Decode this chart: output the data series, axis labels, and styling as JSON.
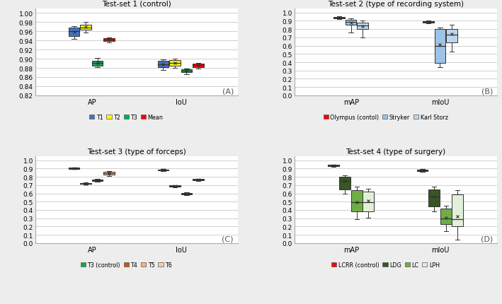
{
  "panel_A": {
    "title": "Test-set 1 (control)",
    "xlabel_groups": [
      "AP",
      "IoU"
    ],
    "ylim": [
      0.82,
      1.01
    ],
    "yticks": [
      0.82,
      0.84,
      0.86,
      0.88,
      0.9,
      0.92,
      0.94,
      0.96,
      0.98,
      1.0
    ],
    "legend_labels": [
      "T1",
      "T2",
      "T3",
      "Mean"
    ],
    "legend_colors": [
      "#4472C4",
      "#FFFF00",
      "#00B050",
      "#FF0000"
    ],
    "label": "(A)",
    "series_keys": [
      "T1",
      "T2",
      "T3",
      "Mean"
    ],
    "groups": {
      "AP": {
        "T1": {
          "q1": 0.95,
          "median": 0.96,
          "q3": 0.968,
          "whislo": 0.943,
          "whishi": 0.972,
          "mean": 0.959
        },
        "T2": {
          "q1": 0.963,
          "median": 0.968,
          "q3": 0.975,
          "whislo": 0.958,
          "whishi": 0.98,
          "mean": 0.969
        },
        "T3": {
          "q1": 0.885,
          "median": 0.891,
          "q3": 0.896,
          "whislo": 0.881,
          "whishi": 0.901,
          "mean": 0.891
        },
        "Mean": {
          "q1": 0.939,
          "median": 0.942,
          "q3": 0.945,
          "whislo": 0.935,
          "whishi": 0.947,
          "mean": 0.942
        }
      },
      "IoU": {
        "T1": {
          "q1": 0.882,
          "median": 0.888,
          "q3": 0.895,
          "whislo": 0.875,
          "whishi": 0.898,
          "mean": 0.888
        },
        "T2": {
          "q1": 0.884,
          "median": 0.891,
          "q3": 0.897,
          "whislo": 0.88,
          "whishi": 0.9,
          "mean": 0.891
        },
        "T3": {
          "q1": 0.87,
          "median": 0.874,
          "q3": 0.877,
          "whislo": 0.866,
          "whishi": 0.879,
          "mean": 0.874
        },
        "Mean": {
          "q1": 0.882,
          "median": 0.886,
          "q3": 0.889,
          "whislo": 0.879,
          "whishi": 0.891,
          "mean": 0.886
        }
      }
    }
  },
  "panel_B": {
    "title": "Test-set 2 (type of recording system)",
    "xlabel_groups": [
      "mAP",
      "mIoU"
    ],
    "ylim": [
      0,
      1.05
    ],
    "yticks": [
      0,
      0.1,
      0.2,
      0.3,
      0.4,
      0.5,
      0.6,
      0.7,
      0.8,
      0.9,
      1.0
    ],
    "legend_labels": [
      "Olympus (contol)",
      "Stryker",
      "Karl Storz"
    ],
    "legend_colors": [
      "#FF0000",
      "#9DC3E6",
      "#BDD7EE"
    ],
    "label": "(B)",
    "series_keys": [
      "Olympus",
      "Stryker",
      "KarlStorz"
    ],
    "groups": {
      "mAP": {
        "Olympus": {
          "q1": 0.93,
          "median": 0.94,
          "q3": 0.95,
          "whislo": 0.92,
          "whishi": 0.957,
          "mean": 0.94
        },
        "Stryker": {
          "q1": 0.85,
          "median": 0.885,
          "q3": 0.91,
          "whislo": 0.76,
          "whishi": 0.93,
          "mean": 0.88
        },
        "KarlStorz": {
          "q1": 0.8,
          "median": 0.845,
          "q3": 0.875,
          "whislo": 0.7,
          "whishi": 0.9,
          "mean": 0.84
        }
      },
      "mIoU": {
        "Olympus": {
          "q1": 0.878,
          "median": 0.888,
          "q3": 0.896,
          "whislo": 0.872,
          "whishi": 0.9,
          "mean": 0.888
        },
        "Stryker": {
          "q1": 0.39,
          "median": 0.6,
          "q3": 0.8,
          "whislo": 0.34,
          "whishi": 0.82,
          "mean": 0.61
        },
        "KarlStorz": {
          "q1": 0.64,
          "median": 0.73,
          "q3": 0.8,
          "whislo": 0.53,
          "whishi": 0.85,
          "mean": 0.745
        }
      }
    }
  },
  "panel_C": {
    "title": "Test-set 3 (type of forceps)",
    "xlabel_groups": [
      "AP",
      "IoU"
    ],
    "ylim": [
      0,
      1.05
    ],
    "yticks": [
      0,
      0.1,
      0.2,
      0.3,
      0.4,
      0.5,
      0.6,
      0.7,
      0.8,
      0.9,
      1.0
    ],
    "legend_labels": [
      "T3 (control)",
      "T4",
      "T5",
      "T6"
    ],
    "legend_colors": [
      "#00B050",
      "#C55A11",
      "#F4B183",
      "#F8CBAD"
    ],
    "label": "(C)",
    "series_keys": [
      "T3",
      "T4",
      "T5",
      "T6"
    ],
    "groups": {
      "AP": {
        "T3": {
          "q1": 0.898,
          "median": 0.904,
          "q3": 0.909,
          "whislo": 0.893,
          "whishi": 0.912,
          "mean": 0.904
        },
        "T4": {
          "q1": 0.713,
          "median": 0.72,
          "q3": 0.728,
          "whislo": 0.704,
          "whishi": 0.734,
          "mean": 0.72
        },
        "T5": {
          "q1": 0.752,
          "median": 0.76,
          "q3": 0.768,
          "whislo": 0.745,
          "whishi": 0.773,
          "mean": 0.76
        },
        "T6": {
          "q1": 0.825,
          "median": 0.848,
          "q3": 0.862,
          "whislo": 0.812,
          "whishi": 0.872,
          "mean": 0.848
        }
      },
      "IoU": {
        "T3": {
          "q1": 0.875,
          "median": 0.883,
          "q3": 0.889,
          "whislo": 0.869,
          "whishi": 0.892,
          "mean": 0.883
        },
        "T4": {
          "q1": 0.68,
          "median": 0.688,
          "q3": 0.697,
          "whislo": 0.672,
          "whishi": 0.702,
          "mean": 0.688
        },
        "T5": {
          "q1": 0.587,
          "median": 0.598,
          "q3": 0.608,
          "whislo": 0.58,
          "whishi": 0.612,
          "mean": 0.598
        },
        "T6": {
          "q1": 0.758,
          "median": 0.766,
          "q3": 0.774,
          "whislo": 0.752,
          "whishi": 0.778,
          "mean": 0.766
        }
      }
    }
  },
  "panel_D": {
    "title": "Test-set 4 (type of surgery)",
    "xlabel_groups": [
      "mAP",
      "mIoU"
    ],
    "ylim": [
      0,
      1.05
    ],
    "yticks": [
      0,
      0.1,
      0.2,
      0.3,
      0.4,
      0.5,
      0.6,
      0.7,
      0.8,
      0.9,
      1.0
    ],
    "legend_labels": [
      "LCRR (control)",
      "LDG",
      "LC",
      "LPH"
    ],
    "legend_colors": [
      "#FF0000",
      "#375623",
      "#70AD47",
      "#E2EFDA"
    ],
    "label": "(D)",
    "series_keys": [
      "LCRR",
      "LDG",
      "LC",
      "LPH"
    ],
    "groups": {
      "mAP": {
        "LCRR": {
          "q1": 0.926,
          "median": 0.935,
          "q3": 0.943,
          "whislo": 0.918,
          "whishi": 0.948,
          "mean": 0.935
        },
        "LDG": {
          "q1": 0.65,
          "median": 0.75,
          "q3": 0.8,
          "whislo": 0.6,
          "whishi": 0.82,
          "mean": 0.75
        },
        "LC": {
          "q1": 0.38,
          "median": 0.49,
          "q3": 0.64,
          "whislo": 0.29,
          "whishi": 0.68,
          "mean": 0.49
        },
        "LPH": {
          "q1": 0.38,
          "median": 0.49,
          "q3": 0.62,
          "whislo": 0.31,
          "whishi": 0.66,
          "mean": 0.51
        }
      },
      "mIoU": {
        "LCRR": {
          "q1": 0.872,
          "median": 0.882,
          "q3": 0.89,
          "whislo": 0.862,
          "whishi": 0.896,
          "mean": 0.882
        },
        "LDG": {
          "q1": 0.44,
          "median": 0.56,
          "q3": 0.65,
          "whislo": 0.38,
          "whishi": 0.68,
          "mean": 0.56
        },
        "LC": {
          "q1": 0.23,
          "median": 0.3,
          "q3": 0.42,
          "whislo": 0.14,
          "whishi": 0.45,
          "mean": 0.31
        },
        "LPH": {
          "q1": 0.2,
          "median": 0.29,
          "q3": 0.59,
          "whislo": 0.04,
          "whishi": 0.64,
          "mean": 0.32
        }
      }
    }
  },
  "fig_bg": "#EDEDED",
  "ax_bg": "#FFFFFF",
  "grid_color": "#D0D0D0"
}
